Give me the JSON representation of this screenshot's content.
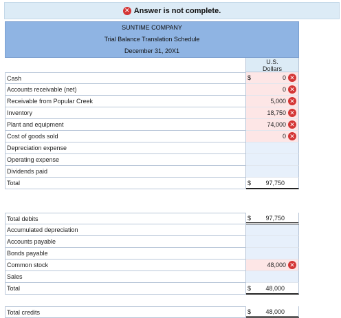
{
  "banner": {
    "message": "Answer is not complete.",
    "icon": "x-circle-icon"
  },
  "header": {
    "company": "SUNTIME COMPANY",
    "title": "Trial Balance Translation Schedule",
    "date": "December 31, 20X1"
  },
  "column": {
    "line1": "U.S.",
    "line2": "Dollars"
  },
  "colors": {
    "error": "#d43535",
    "header_bg": "#8fb4e3",
    "input_error_bg": "#fde6e6",
    "input_bg": "#e7f0fb"
  },
  "rows": [
    {
      "label": "Cash",
      "dollar": "$",
      "value": "0",
      "error": true
    },
    {
      "label": "Accounts receivable (net)",
      "dollar": "",
      "value": "0",
      "error": true
    },
    {
      "label": "Receivable from Popular Creek",
      "dollar": "",
      "value": "5,000",
      "error": true
    },
    {
      "label": "Inventory",
      "dollar": "",
      "value": "18,750",
      "error": true
    },
    {
      "label": "Plant and equipment",
      "dollar": "",
      "value": "74,000",
      "error": true
    },
    {
      "label": "Cost of goods sold",
      "dollar": "",
      "value": "0",
      "error": true
    },
    {
      "label": "Depreciation expense",
      "dollar": "",
      "value": "",
      "error": false
    },
    {
      "label": "Operating expense",
      "dollar": "",
      "value": "",
      "error": false
    },
    {
      "label": "Dividends paid",
      "dollar": "",
      "value": "",
      "error": false
    },
    {
      "label": "Total",
      "dollar": "$",
      "value": "97,750",
      "error": false
    }
  ],
  "rows2": [
    {
      "label": "Total debits",
      "dollar": "$",
      "value": "97,750",
      "error": false
    },
    {
      "label": "Accumulated depreciation",
      "dollar": "",
      "value": "",
      "error": false
    },
    {
      "label": "Accounts payable",
      "dollar": "",
      "value": "",
      "error": false
    },
    {
      "label": "Bonds payable",
      "dollar": "",
      "value": "",
      "error": false
    },
    {
      "label": "Common stock",
      "dollar": "",
      "value": "48,000",
      "error": true
    },
    {
      "label": "Sales",
      "dollar": "",
      "value": "",
      "error": false
    },
    {
      "label": "Total",
      "dollar": "$",
      "value": "48,000",
      "error": false
    }
  ],
  "rows3": [
    {
      "label": "Total credits",
      "dollar": "$",
      "value": "48,000",
      "error": false
    }
  ]
}
